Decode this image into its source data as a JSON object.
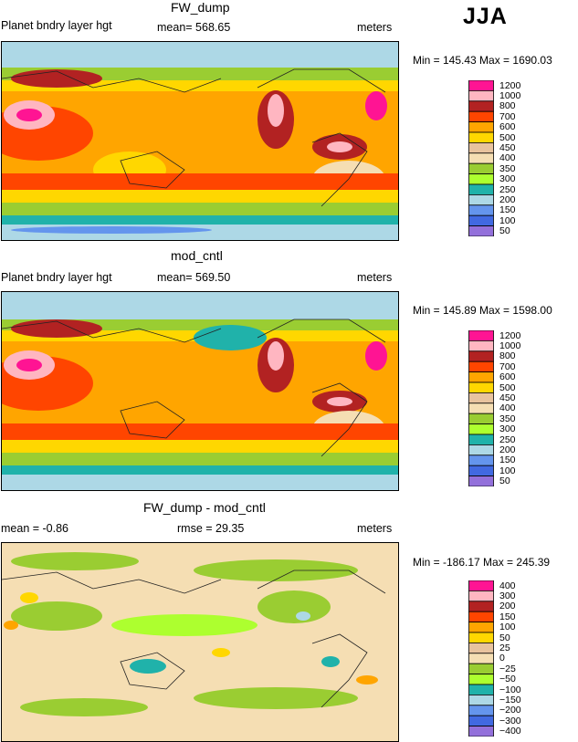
{
  "season": "JJA",
  "panels": [
    {
      "title": "FW_dump",
      "variable": "Planet bndry layer hgt",
      "stat": "mean= 568.65",
      "units": "meters",
      "range": "Min = 145.43 Max = 1690.03",
      "legend": [
        "1200",
        "1000",
        "800",
        "700",
        "600",
        "500",
        "450",
        "400",
        "350",
        "300",
        "250",
        "200",
        "150",
        "100",
        "50"
      ]
    },
    {
      "title": "mod_cntl",
      "variable": "Planet bndry layer hgt",
      "stat": "mean= 569.50",
      "units": "meters",
      "range": "Min = 145.89 Max = 1598.00",
      "legend": [
        "1200",
        "1000",
        "800",
        "700",
        "600",
        "500",
        "450",
        "400",
        "350",
        "300",
        "250",
        "200",
        "150",
        "100",
        "50"
      ]
    },
    {
      "title": "FW_dump - mod_cntl",
      "stat_left": "mean =   -0.86",
      "stat_mid": "rmse =  29.35",
      "units": "meters",
      "range": "Min = -186.17 Max = 245.39",
      "legend": [
        "400",
        "300",
        "200",
        "150",
        "100",
        "50",
        "25",
        "0",
        "−25",
        "−50",
        "−100",
        "−150",
        "−200",
        "−300",
        "−400"
      ]
    }
  ],
  "colors": {
    "abs_scale": [
      "#ff1493",
      "#ffb6c1",
      "#b22222",
      "#ff4500",
      "#ffa500",
      "#ffd700",
      "#e8c39e",
      "#f5deb3",
      "#9acd32",
      "#adff2f",
      "#20b2aa",
      "#add8e6",
      "#6495ed",
      "#4169e1",
      "#9370db"
    ],
    "diff_scale": [
      "#ff1493",
      "#ffb6c1",
      "#b22222",
      "#ff4500",
      "#ffa500",
      "#ffd700",
      "#e8c39e",
      "#f5deb3",
      "#9acd32",
      "#adff2f",
      "#20b2aa",
      "#add8e6",
      "#6495ed",
      "#4169e1",
      "#9370db"
    ]
  }
}
